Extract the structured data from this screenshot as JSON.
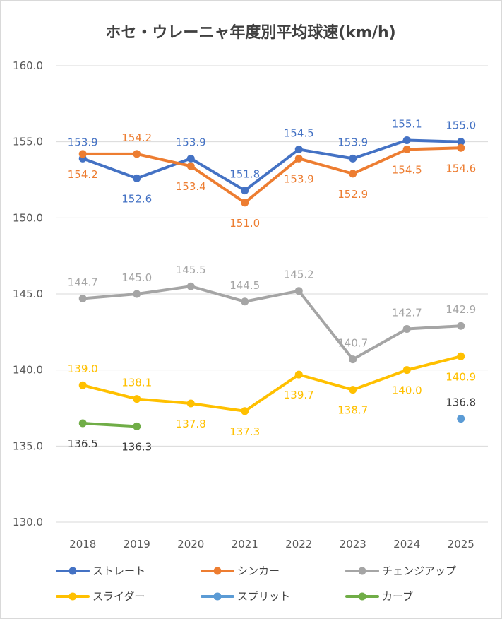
{
  "chart_data": {
    "type": "line",
    "title": "ホセ・ウレーニャ年度別平均球速(km/h)",
    "xlabel": "",
    "ylabel": "",
    "categories": [
      "2018",
      "2019",
      "2020",
      "2021",
      "2022",
      "2023",
      "2024",
      "2025"
    ],
    "ylim": [
      130.0,
      160.0
    ],
    "yticks": [
      "130.0",
      "135.0",
      "140.0",
      "145.0",
      "150.0",
      "155.0",
      "160.0"
    ],
    "grid": true,
    "legend_position": "bottom",
    "series": [
      {
        "name": "ストレート",
        "color": "#4472C4",
        "values": [
          153.9,
          152.6,
          153.9,
          151.8,
          154.5,
          153.9,
          155.1,
          155.0
        ],
        "label_pos": [
          "above",
          "below",
          "above",
          "above",
          "above",
          "above",
          "above",
          "above"
        ]
      },
      {
        "name": "シンカー",
        "color": "#ED7D31",
        "values": [
          154.2,
          154.2,
          153.4,
          151.0,
          153.9,
          152.9,
          154.5,
          154.6
        ],
        "label_pos": [
          "below",
          "above",
          "below",
          "below",
          "below",
          "below",
          "below",
          "below"
        ]
      },
      {
        "name": "チェンジアップ",
        "color": "#A5A5A5",
        "values": [
          144.7,
          145.0,
          145.5,
          144.5,
          145.2,
          140.7,
          142.7,
          142.9
        ],
        "label_pos": [
          "above",
          "above",
          "above",
          "above",
          "above",
          "above",
          "above",
          "above"
        ]
      },
      {
        "name": "スライダー",
        "color": "#FFC000",
        "values": [
          139.0,
          138.1,
          137.8,
          137.3,
          139.7,
          138.7,
          140.0,
          140.9
        ],
        "label_pos": [
          "above",
          "above",
          "below",
          "below",
          "below",
          "below",
          "below",
          "below"
        ]
      },
      {
        "name": "スプリット",
        "color": "#5B9BD5",
        "values": [
          null,
          null,
          null,
          null,
          null,
          null,
          null,
          136.8
        ],
        "label_pos": [
          "above",
          "above",
          "above",
          "above",
          "above",
          "above",
          "above",
          "above"
        ],
        "label_color": "#404040"
      },
      {
        "name": "カーブ",
        "color": "#70AD47",
        "values": [
          136.5,
          136.3,
          null,
          null,
          null,
          null,
          null,
          null
        ],
        "label_pos": [
          "below",
          "below",
          "below",
          "below",
          "below",
          "below",
          "below",
          "below"
        ],
        "label_color": "#404040"
      }
    ]
  }
}
